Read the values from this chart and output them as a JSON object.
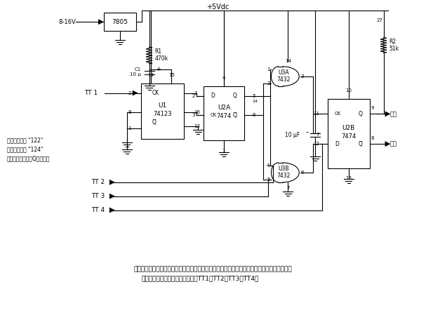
{
  "bg_color": "#ffffff",
  "line_color": "#000000",
  "description_line1": "该电路从按键式剖码器取得有效低电平输入，并对正确的数字片列反应。该序列决定了用户把哪",
  "description_line2": "些按键数字接到顺序剖码器输入端TT1、TT2、TT3及TT4。",
  "note_line1": "输出高电平按 \"122\"",
  "note_line2": "输出低电平按 \"124\"",
  "note_line3": "在电源升启时输出Q为低电平",
  "figsize": [
    6.07,
    4.59
  ],
  "dpi": 100
}
